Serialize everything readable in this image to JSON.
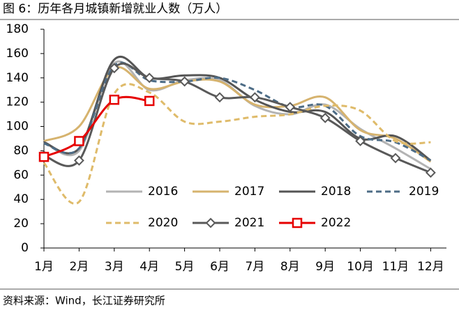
{
  "chart_data": {
    "type": "line",
    "title": "图 6：历年各月城镇新增就业人数（万人）",
    "source": "资料来源：Wind，长江证券研究所",
    "categories": [
      "1月",
      "2月",
      "3月",
      "4月",
      "5月",
      "6月",
      "7月",
      "8月",
      "9月",
      "10月",
      "11月",
      "12月"
    ],
    "ylim": [
      0,
      180
    ],
    "yticks": [
      0,
      20,
      40,
      60,
      80,
      100,
      120,
      140,
      160,
      180
    ],
    "grid": false,
    "smooth": true,
    "legend": "inside-bottom",
    "series": [
      {
        "name": "2016",
        "color": "#b3b3b3",
        "line_style": "solid",
        "marker": "none",
        "values": [
          87,
          80,
          152,
          130,
          138,
          138,
          117,
          110,
          118,
          98,
          82,
          65
        ]
      },
      {
        "name": "2017",
        "color": "#d6b36e",
        "line_style": "solid",
        "marker": "none",
        "values": [
          88,
          100,
          148,
          131,
          137,
          137,
          118,
          117,
          124,
          97,
          90,
          71
        ]
      },
      {
        "name": "2018",
        "color": "#555555",
        "line_style": "solid",
        "marker": "none",
        "values": [
          87,
          82,
          155,
          140,
          142,
          140,
          122,
          112,
          112,
          90,
          92,
          72
        ]
      },
      {
        "name": "2019",
        "color": "#4d6c86",
        "line_style": "dashed",
        "marker": "none",
        "values": [
          86,
          82,
          150,
          138,
          137,
          140,
          130,
          116,
          117,
          92,
          87,
          72
        ]
      },
      {
        "name": "2020",
        "color": "#dfbb6a",
        "line_style": "dashed",
        "marker": "none",
        "values": [
          70,
          38,
          127,
          128,
          104,
          104,
          108,
          110,
          117,
          113,
          88,
          87
        ]
      },
      {
        "name": "2021",
        "color": "#595959",
        "line_style": "solid",
        "marker": "diamond",
        "values": [
          76,
          72,
          148,
          140,
          137,
          124,
          124,
          116,
          107,
          88,
          74,
          62
        ]
      },
      {
        "name": "2022",
        "color": "#e60000",
        "line_style": "solid",
        "marker": "square",
        "values": [
          75,
          88,
          122,
          121,
          null,
          null,
          null,
          null,
          null,
          null,
          null,
          null
        ]
      }
    ]
  }
}
